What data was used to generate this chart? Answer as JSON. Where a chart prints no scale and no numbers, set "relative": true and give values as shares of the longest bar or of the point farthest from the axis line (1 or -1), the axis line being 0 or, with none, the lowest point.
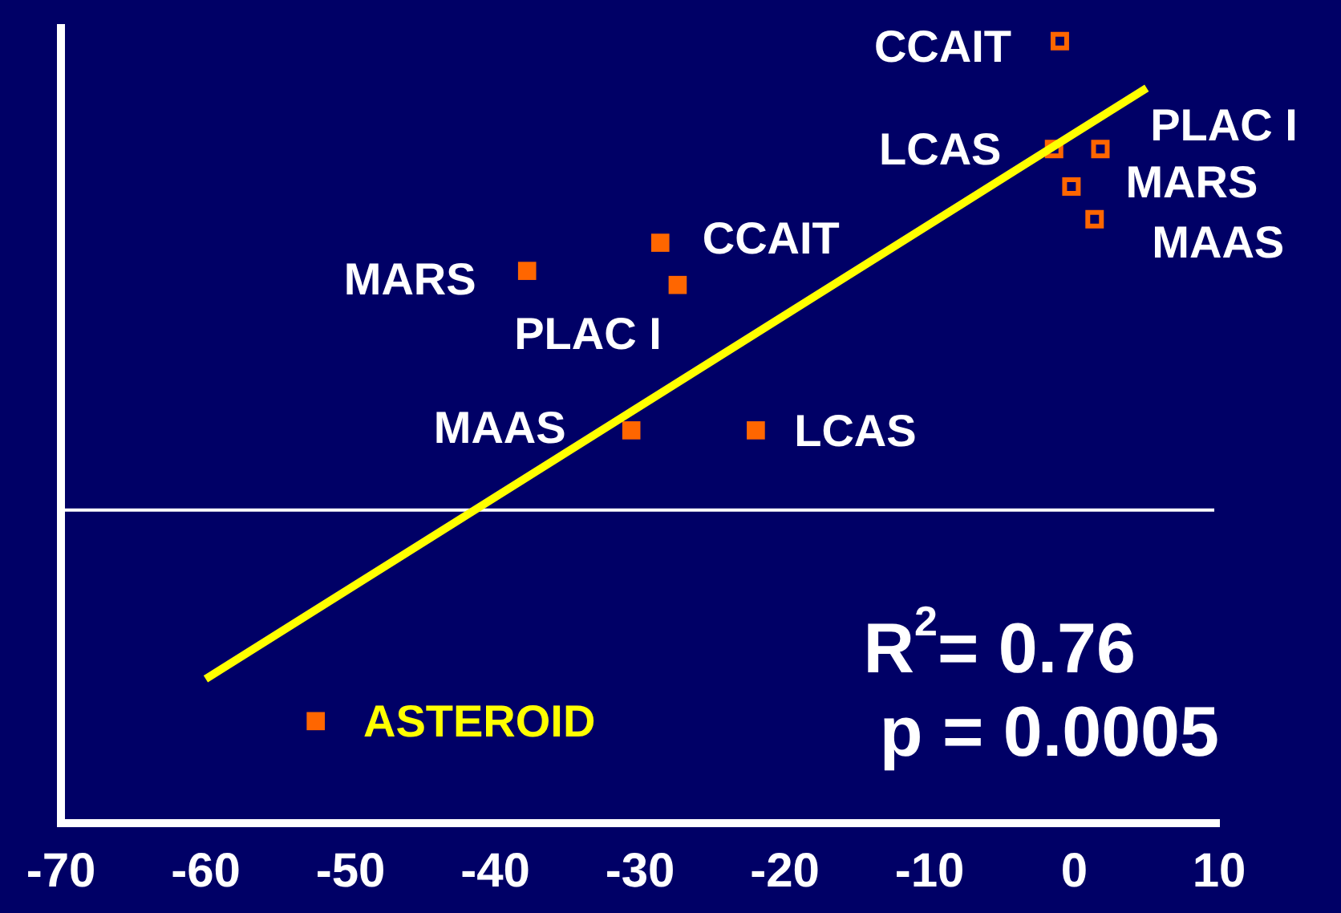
{
  "chart_data": {
    "type": "scatter",
    "relative": true,
    "marker": "square",
    "legend": false,
    "grid": false,
    "xlim": [
      -70,
      10
    ],
    "xticks": [
      -70,
      -60,
      -50,
      -40,
      -30,
      -20,
      -10,
      0,
      10
    ],
    "series": [
      {
        "type": "scatter",
        "color": "#ff6600",
        "x": [
          -28.6,
          -27.4,
          -37.8,
          -30.6,
          -22.0,
          -52.4
        ],
        "values": [
          0.57,
          0.48,
          0.51,
          0.17,
          0.17,
          -0.45
        ]
      },
      {
        "type": "scatter",
        "color": "#ff6600",
        "x": [
          -1.0,
          -1.4,
          1.8,
          -0.2,
          1.4
        ],
        "values": [
          1.0,
          0.77,
          0.77,
          0.69,
          0.62
        ]
      },
      {
        "type": "line",
        "color": "#ffff00",
        "marker": "none",
        "x": [
          -60,
          5
        ],
        "values": [
          -0.36,
          0.9
        ]
      }
    ],
    "annotations": [
      {
        "text": "CCAIT",
        "x": -1.0,
        "y": 1.0
      },
      {
        "text": "LCAS",
        "x": -1.4,
        "y": 0.77
      },
      {
        "text": "PLAC I",
        "x": 1.8,
        "y": 0.77
      },
      {
        "text": "MARS",
        "x": -0.2,
        "y": 0.69
      },
      {
        "text": "MAAS",
        "x": 1.4,
        "y": 0.62
      },
      {
        "text": "CCAIT",
        "x": -28.6,
        "y": 0.57
      },
      {
        "text": "MARS",
        "x": -37.8,
        "y": 0.51
      },
      {
        "text": "PLAC I",
        "x": -27.4,
        "y": 0.48
      },
      {
        "text": "MAAS",
        "x": -30.6,
        "y": 0.17
      },
      {
        "text": "LCAS",
        "x": -22.0,
        "y": 0.17
      },
      {
        "text": "ASTEROID",
        "x": -52.4,
        "y": -0.45
      },
      "R$^{2}$= 0.76",
      "p = 0.0005"
    ]
  }
}
